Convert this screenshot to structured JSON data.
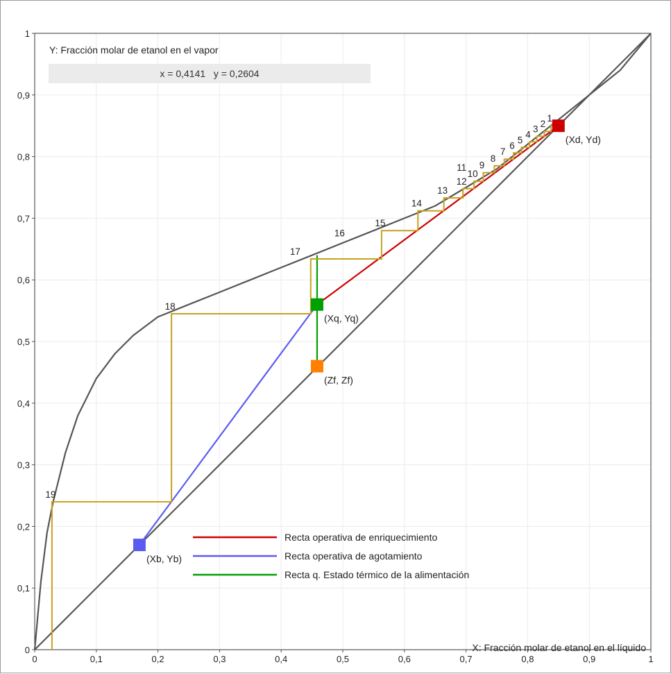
{
  "chart_data": {
    "type": "line",
    "title": "",
    "ylabel": "Y: Fracción molar de etanol en el vapor",
    "xlabel": "X: Fracción molar de etanol en el líquido",
    "xlim": [
      0,
      1
    ],
    "ylim": [
      0,
      1
    ],
    "x_ticks": [
      "0",
      "0,1",
      "0,2",
      "0,3",
      "0,4",
      "0,5",
      "0,6",
      "0,7",
      "0,8",
      "0,9",
      "1"
    ],
    "y_ticks": [
      "0",
      "0,1",
      "0,2",
      "0,3",
      "0,4",
      "0,5",
      "0,6",
      "0,7",
      "0,8",
      "0,9",
      "1"
    ],
    "grid": true,
    "cursor_readout": "x = 0,4141   y = 0,2604",
    "equilibrium_curve": {
      "x": [
        0,
        0.01,
        0.02,
        0.03,
        0.05,
        0.07,
        0.1,
        0.13,
        0.16,
        0.2,
        0.25,
        0.3,
        0.35,
        0.4,
        0.45,
        0.5,
        0.55,
        0.6,
        0.65,
        0.7,
        0.75,
        0.8,
        0.85,
        0.9,
        0.95,
        1.0
      ],
      "y": [
        0,
        0.11,
        0.19,
        0.24,
        0.32,
        0.38,
        0.44,
        0.48,
        0.51,
        0.54,
        0.56,
        0.58,
        0.6,
        0.62,
        0.64,
        0.66,
        0.68,
        0.7,
        0.72,
        0.75,
        0.78,
        0.82,
        0.86,
        0.9,
        0.94,
        1.0
      ]
    },
    "diagonal": {
      "x": [
        0,
        1
      ],
      "y": [
        0,
        1
      ]
    },
    "series": [
      {
        "name": "Recta operativa de enriquecimiento",
        "color": "#cc0000",
        "x": [
          0.4583,
          0.85
        ],
        "y": [
          0.56,
          0.85
        ]
      },
      {
        "name": "Recta operativa de agotamiento",
        "color": "#5b5bf0",
        "x": [
          0.17,
          0.4583
        ],
        "y": [
          0.17,
          0.56
        ]
      },
      {
        "name": "Recta q. Estado térmico de la alimentación",
        "color": "#00a000",
        "x": [
          0.4583,
          0.4583
        ],
        "y": [
          0.46,
          0.64
        ]
      }
    ],
    "steps": {
      "color": "#c8a020",
      "corners": [
        [
          0.85,
          0.85
        ],
        [
          0.838,
          0.85
        ],
        [
          0.838,
          0.841
        ],
        [
          0.827,
          0.841
        ],
        [
          0.827,
          0.833
        ],
        [
          0.815,
          0.833
        ],
        [
          0.815,
          0.824
        ],
        [
          0.803,
          0.824
        ],
        [
          0.803,
          0.815
        ],
        [
          0.79,
          0.815
        ],
        [
          0.79,
          0.806
        ],
        [
          0.777,
          0.806
        ],
        [
          0.777,
          0.796
        ],
        [
          0.762,
          0.796
        ],
        [
          0.762,
          0.785
        ],
        [
          0.746,
          0.785
        ],
        [
          0.746,
          0.774
        ],
        [
          0.728,
          0.774
        ],
        [
          0.728,
          0.76
        ],
        [
          0.713,
          0.76
        ],
        [
          0.713,
          0.748
        ],
        [
          0.695,
          0.748
        ],
        [
          0.695,
          0.733
        ],
        [
          0.664,
          0.733
        ],
        [
          0.664,
          0.712
        ],
        [
          0.622,
          0.712
        ],
        [
          0.622,
          0.68
        ],
        [
          0.563,
          0.68
        ],
        [
          0.563,
          0.634
        ],
        [
          0.448,
          0.634
        ],
        [
          0.448,
          0.545
        ],
        [
          0.222,
          0.545
        ],
        [
          0.222,
          0.24
        ],
        [
          0.028,
          0.24
        ],
        [
          0.028,
          0.0
        ]
      ],
      "labels": [
        {
          "text": "1",
          "x": 0.838,
          "y": 0.85
        },
        {
          "text": "2",
          "x": 0.827,
          "y": 0.841
        },
        {
          "text": "3",
          "x": 0.815,
          "y": 0.833
        },
        {
          "text": "4",
          "x": 0.803,
          "y": 0.824
        },
        {
          "text": "5",
          "x": 0.79,
          "y": 0.815
        },
        {
          "text": "6",
          "x": 0.777,
          "y": 0.806
        },
        {
          "text": "7",
          "x": 0.762,
          "y": 0.796
        },
        {
          "text": "8",
          "x": 0.746,
          "y": 0.785
        },
        {
          "text": "9",
          "x": 0.728,
          "y": 0.774
        },
        {
          "text": "10",
          "x": 0.713,
          "y": 0.76
        },
        {
          "text": "11",
          "x": 0.695,
          "y": 0.77
        },
        {
          "text": "12",
          "x": 0.695,
          "y": 0.748
        },
        {
          "text": "13",
          "x": 0.664,
          "y": 0.733
        },
        {
          "text": "14",
          "x": 0.622,
          "y": 0.712
        },
        {
          "text": "15",
          "x": 0.563,
          "y": 0.68
        },
        {
          "text": "16",
          "x": 0.497,
          "y": 0.664
        },
        {
          "text": "17",
          "x": 0.425,
          "y": 0.634
        },
        {
          "text": "18",
          "x": 0.222,
          "y": 0.545
        },
        {
          "text": "19",
          "x": 0.028,
          "y": 0.24
        }
      ]
    },
    "markers": [
      {
        "label": "(Xd, Yd)",
        "x": 0.85,
        "y": 0.85,
        "color": "#cc0000"
      },
      {
        "label": "(Xq, Yq)",
        "x": 0.4583,
        "y": 0.56,
        "color": "#00a000"
      },
      {
        "label": "(Zf, Zf)",
        "x": 0.4583,
        "y": 0.46,
        "color": "#ff8000"
      },
      {
        "label": "(Xb, Yb)",
        "x": 0.17,
        "y": 0.17,
        "color": "#5b5bf0"
      }
    ],
    "legend": {
      "placement": "bottom-center",
      "items": [
        "Recta operativa de enriquecimiento",
        "Recta operativa de agotamiento",
        "Recta q. Estado térmico de la alimentación"
      ]
    }
  }
}
